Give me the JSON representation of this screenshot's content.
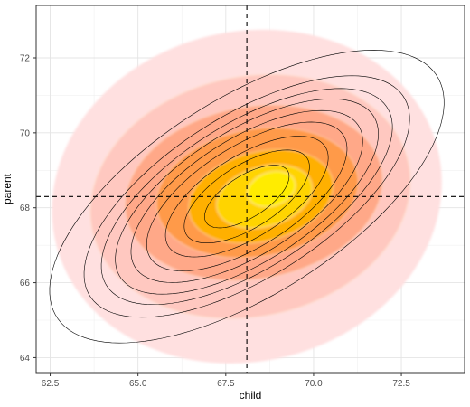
{
  "chart_data": {
    "type": "density-contour",
    "xlabel": "child",
    "ylabel": "parent",
    "xlim": [
      62.1,
      74.3
    ],
    "ylim": [
      63.6,
      73.4
    ],
    "x_ticks": [
      62.5,
      65.0,
      67.5,
      70.0,
      72.5
    ],
    "x_tick_labels": [
      "62.5",
      "65.0",
      "67.5",
      "70.0",
      "72.5"
    ],
    "y_ticks": [
      64,
      66,
      68,
      70,
      72
    ],
    "y_tick_labels": [
      "64",
      "66",
      "68",
      "70",
      "72"
    ],
    "grid": true,
    "reference_lines": {
      "vertical_x": 68.1,
      "horizontal_y": 68.3,
      "style": "dashed"
    },
    "fill_colors": [
      "#ffe0e0",
      "#ffc8c0",
      "#ffa888",
      "#ff9a4a",
      "#ffb000",
      "#ffd400",
      "#ffec00"
    ],
    "contour_line_color": "#000000",
    "filled_levels": [
      {
        "cx": 68.1,
        "cy": 68.3,
        "rx": 5.6,
        "ry": 4.4,
        "angle": 14
      },
      {
        "cx": 68.2,
        "cy": 68.3,
        "rx": 4.6,
        "ry": 3.2,
        "angle": 12
      },
      {
        "cx": 68.3,
        "cy": 68.4,
        "rx": 3.7,
        "ry": 2.3,
        "angle": 10
      },
      {
        "cx": 68.4,
        "cy": 68.4,
        "rx": 2.9,
        "ry": 1.7,
        "angle": 10
      },
      {
        "cx": 68.5,
        "cy": 68.3,
        "rx": 2.1,
        "ry": 1.2,
        "angle": 14
      },
      {
        "cx": 68.6,
        "cy": 68.3,
        "rx": 1.4,
        "ry": 0.8,
        "angle": 16
      },
      {
        "cx": 68.8,
        "cy": 68.5,
        "rx": 0.7,
        "ry": 0.45,
        "angle": 18
      }
    ],
    "normal_contours": {
      "center": [
        68.1,
        68.3
      ],
      "angle": 30,
      "semi_major": [
        1.35,
        2.0,
        2.6,
        3.2,
        3.7,
        4.2,
        4.65,
        5.2,
        6.3
      ],
      "semi_minor": [
        0.57,
        0.85,
        1.1,
        1.36,
        1.57,
        1.78,
        1.97,
        2.2,
        2.67
      ]
    }
  }
}
